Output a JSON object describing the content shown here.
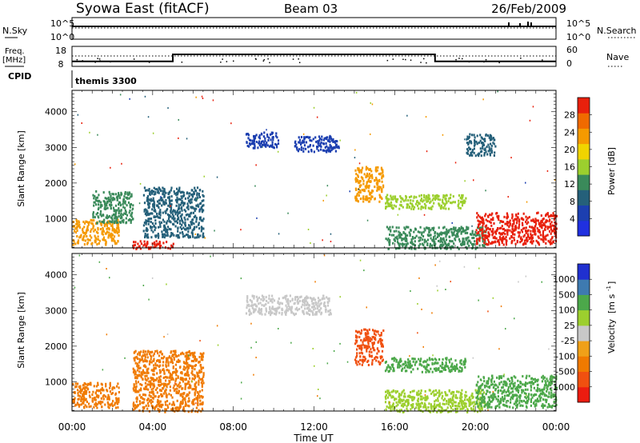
{
  "header": {
    "title": "Syowa East (fitACF)",
    "beam": "Beam 03",
    "date": "26/Feb/2009"
  },
  "top_panels": {
    "nsky_label": "N.Sky",
    "nsearch_label": "N.Search",
    "nsky_ticks": [
      "10^5",
      "10^0"
    ],
    "nsearch_ticks": [
      "10^5",
      "10^0"
    ],
    "freq_label_1": "Freq.",
    "freq_label_2": "[MHz]",
    "freq_ticks": [
      "18",
      "8"
    ],
    "nave_label": "Nave",
    "nave_ticks": [
      "60",
      "0"
    ],
    "cpid_label": "CPID",
    "cpid_value": "themis 3300"
  },
  "colors": {
    "power_scale": [
      "#2030e0",
      "#1c3fb0",
      "#25607a",
      "#3a8a5a",
      "#9ccf2e",
      "#f0d400",
      "#f59a00",
      "#f06a00",
      "#e8200c"
    ],
    "velocity_scale": [
      "#ec1c10",
      "#f05010",
      "#f07a00",
      "#f0a018",
      "#c8c8c8",
      "#9ccf2e",
      "#4ca84a",
      "#3e7ab0",
      "#2030d0"
    ]
  },
  "chart_data": [
    {
      "type": "line",
      "title": "N.Sky / N.Search",
      "x": [
        "00:00",
        "02:00",
        "04:00",
        "06:00",
        "08:00",
        "10:00",
        "12:00",
        "14:00",
        "16:00",
        "18:00",
        "20:00",
        "21:30",
        "22:00",
        "24:00"
      ],
      "series": [
        {
          "name": "N.Sky",
          "values": [
            100000,
            100000,
            100000,
            100000,
            100000,
            100000,
            100000,
            100000,
            100000,
            100000,
            100000,
            100000,
            100000,
            100000
          ]
        }
      ],
      "ylim": [
        1,
        100000
      ],
      "yscale": "log"
    },
    {
      "type": "line",
      "title": "Freq. / Nave",
      "x": [
        "00:00",
        "05:00",
        "05:00",
        "18:00",
        "18:00",
        "24:00"
      ],
      "series": [
        {
          "name": "Freq.",
          "values": [
            10.5,
            10.5,
            14.0,
            14.0,
            10.5,
            10.5
          ]
        },
        {
          "name": "Nave",
          "values": [
            33,
            33,
            33,
            33,
            33,
            33
          ]
        }
      ],
      "ylim": [
        8,
        18
      ]
    },
    {
      "type": "heatmap",
      "title": "Power",
      "xlabel": "",
      "ylabel": "Slant Range [km]",
      "xlim": [
        "00:00",
        "24:00"
      ],
      "ylim": [
        180,
        4600
      ],
      "x_ticks": [
        "00:00",
        "04:00",
        "08:00",
        "12:00",
        "16:00",
        "20:00",
        "00:00"
      ],
      "y_ticks": [
        1000,
        2000,
        3000,
        4000
      ],
      "colorbar": {
        "label": "Power [dB]",
        "ticks": [
          4,
          8,
          12,
          16,
          20,
          24,
          28
        ],
        "range": [
          0,
          30
        ]
      },
      "echo_regions": [
        {
          "t": [
            0.0,
            2.3
          ],
          "r": [
            300,
            1000
          ],
          "value": 22
        },
        {
          "t": [
            1.0,
            3.0
          ],
          "r": [
            900,
            1800
          ],
          "value": 10
        },
        {
          "t": [
            3.0,
            5.0
          ],
          "r": [
            180,
            400
          ],
          "value": 28
        },
        {
          "t": [
            3.5,
            6.5
          ],
          "r": [
            500,
            1900
          ],
          "value": 9
        },
        {
          "t": [
            8.6,
            10.2
          ],
          "r": [
            3000,
            3450
          ],
          "value": 5
        },
        {
          "t": [
            11.0,
            13.2
          ],
          "r": [
            2900,
            3350
          ],
          "value": 5
        },
        {
          "t": [
            14.0,
            15.4
          ],
          "r": [
            1500,
            2500
          ],
          "value": 20
        },
        {
          "t": [
            15.5,
            19.5
          ],
          "r": [
            1300,
            1700
          ],
          "value": 16
        },
        {
          "t": [
            15.5,
            20.5
          ],
          "r": [
            180,
            800
          ],
          "value": 10
        },
        {
          "t": [
            20.0,
            24.0
          ],
          "r": [
            300,
            1200
          ],
          "value": 27
        },
        {
          "t": [
            19.5,
            21.0
          ],
          "r": [
            2800,
            3400
          ],
          "value": 7
        }
      ]
    },
    {
      "type": "heatmap",
      "title": "Velocity",
      "xlabel": "Time UT",
      "ylabel": "Slant Range [km]",
      "xlim": [
        "00:00",
        "24:00"
      ],
      "ylim": [
        180,
        4600
      ],
      "x_ticks": [
        "00:00",
        "04:00",
        "08:00",
        "12:00",
        "16:00",
        "20:00",
        "00:00"
      ],
      "y_ticks": [
        1000,
        2000,
        3000,
        4000
      ],
      "colorbar": {
        "label": "Velocity [m s-1]",
        "ticks": [
          -1000,
          -500,
          -100,
          -25,
          25,
          100,
          500,
          1000
        ]
      },
      "echo_regions": [
        {
          "t": [
            0.0,
            2.3
          ],
          "r": [
            300,
            1000
          ],
          "value": -300
        },
        {
          "t": [
            3.0,
            6.5
          ],
          "r": [
            180,
            1900
          ],
          "value": -400
        },
        {
          "t": [
            8.6,
            12.8
          ],
          "r": [
            2900,
            3450
          ],
          "value": 0
        },
        {
          "t": [
            14.0,
            15.4
          ],
          "r": [
            1500,
            2500
          ],
          "value": -700
        },
        {
          "t": [
            15.5,
            19.5
          ],
          "r": [
            1300,
            1700
          ],
          "value": 150
        },
        {
          "t": [
            15.5,
            20.5
          ],
          "r": [
            180,
            800
          ],
          "value": 80
        },
        {
          "t": [
            20.0,
            24.0
          ],
          "r": [
            300,
            1200
          ],
          "value": 200
        }
      ]
    }
  ],
  "axes": {
    "x_ticks": [
      "00:00",
      "04:00",
      "08:00",
      "12:00",
      "16:00",
      "20:00",
      "00:00"
    ],
    "xlabel": "Time UT",
    "ylabel": "Slant Range [km]",
    "power_cb_label": "Power [dB]",
    "power_cb_ticks": [
      "28",
      "24",
      "20",
      "16",
      "12",
      "8",
      "4"
    ],
    "vel_cb_label": "Velocity",
    "vel_cb_unit": "[m s",
    "vel_cb_sup": "-1",
    "vel_cb_close": "]",
    "vel_cb_ticks": [
      "1000",
      "500",
      "100",
      "25",
      "-25",
      "-100",
      "-500",
      "-1000"
    ]
  }
}
